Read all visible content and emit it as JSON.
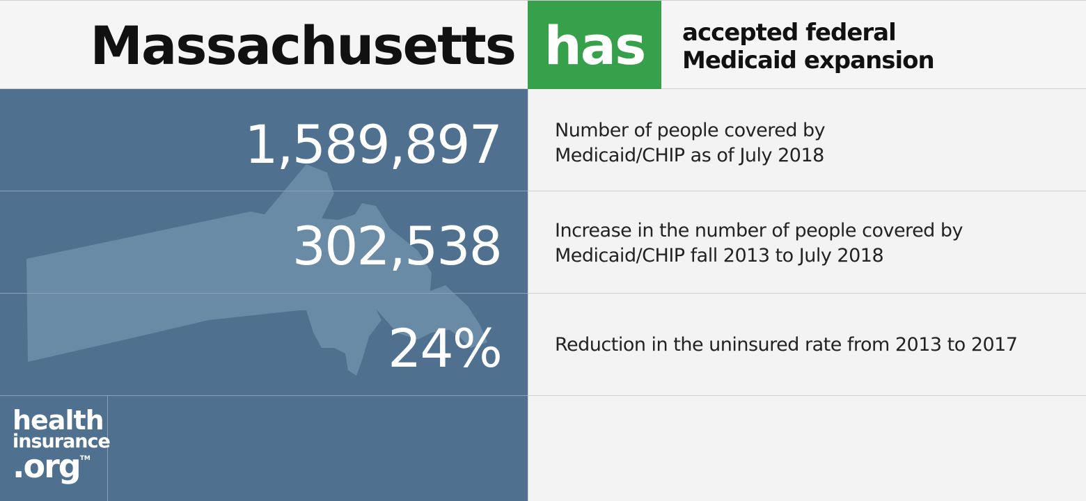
{
  "header": {
    "state": "Massachusetts",
    "status_word": "has",
    "status_line1": "accepted federal",
    "status_line2": "Medicaid expansion"
  },
  "stats": [
    {
      "value": "1,589,897",
      "desc_line1": "Number of people covered by",
      "desc_line2": "Medicaid/CHIP as of July 2018"
    },
    {
      "value": "302,538",
      "desc_line1": "Increase in the number of people covered by",
      "desc_line2": "Medicaid/CHIP fall 2013 to July 2018"
    },
    {
      "value": "24%",
      "desc_line1": "Reduction in the uninsured rate from 2013 to 2017"
    }
  ],
  "logo": {
    "line1": "health",
    "line2": "insurance",
    "line3": ".org",
    "tm": "TM"
  },
  "colors": {
    "accent_green": "#37a04a",
    "panel_blue": "#4f708e",
    "map_tint": "#6a8ba6"
  },
  "icons": {
    "map": "massachusetts-state-silhouette"
  }
}
